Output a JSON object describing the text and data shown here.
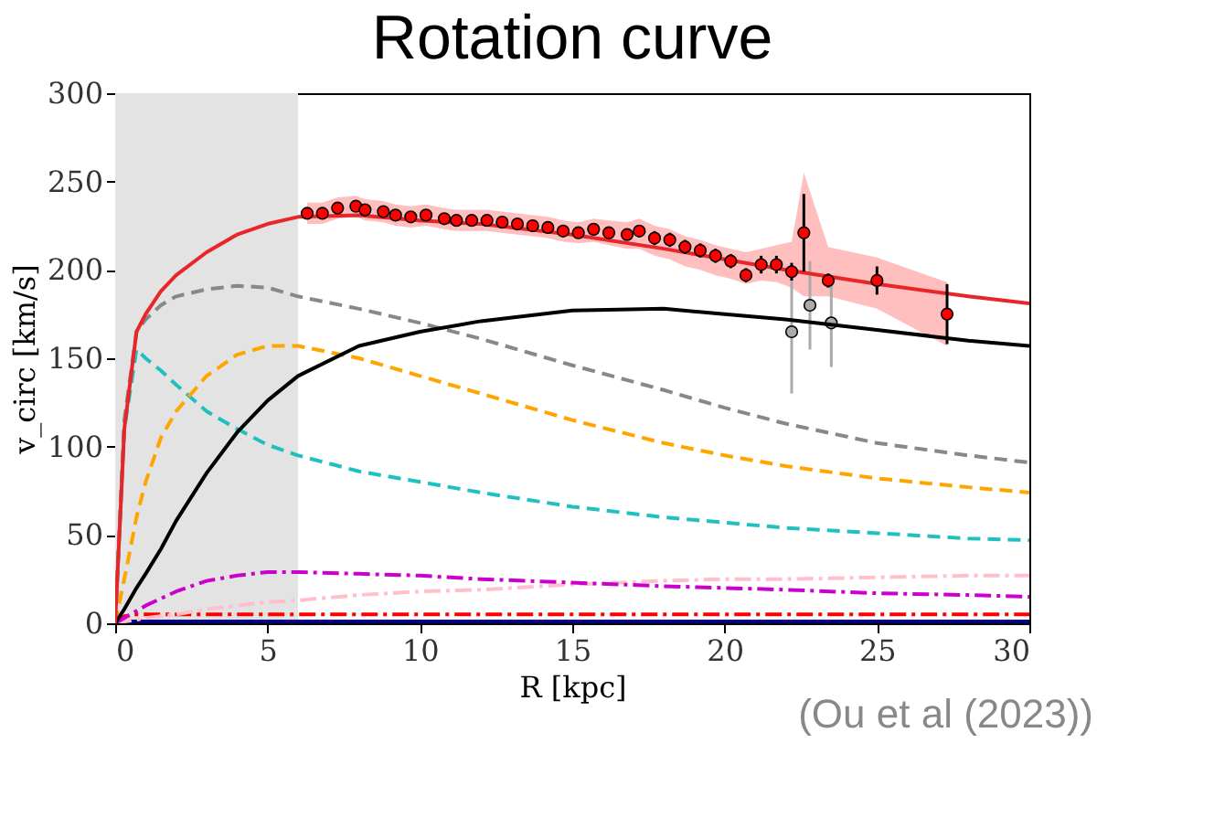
{
  "chart_data": {
    "type": "line",
    "title": "Rotation curve",
    "xlabel": "R [kpc]",
    "ylabel": "v_circ [km/s]",
    "annotations": [
      "(Ou et al (2023))"
    ],
    "xlim": [
      0,
      30
    ],
    "ylim": [
      0,
      300
    ],
    "xticks": [
      0,
      5,
      10,
      15,
      20,
      25,
      30
    ],
    "yticks": [
      0,
      50,
      100,
      150,
      200,
      250,
      300
    ],
    "grid": false,
    "marker": "none",
    "bands": [
      {
        "axis": "x",
        "from": 0,
        "to": 6,
        "color": "#e3e3e3"
      }
    ],
    "series": [
      {
        "color": "#aaaaaa",
        "type": "scatter",
        "marker": "circle",
        "x": [
          22.2,
          22.8,
          23.5
        ],
        "values": [
          165,
          180,
          170
        ],
        "errors": [
          35,
          25,
          25
        ]
      },
      {
        "color": "#000080",
        "line_style": "solid",
        "x": [
          0,
          30
        ],
        "values": [
          1,
          1
        ]
      },
      {
        "color": "#ff0000",
        "line_style": "dashdot",
        "x": [
          0,
          0.3,
          0.7,
          1,
          2,
          5,
          10,
          20,
          30
        ],
        "values": [
          0,
          4,
          5,
          5,
          5,
          5,
          5,
          5,
          5
        ]
      },
      {
        "color": "#ffc0cb",
        "line_style": "dashdot",
        "x": [
          0,
          0.3,
          0.7,
          1,
          1.5,
          2,
          3,
          4,
          5,
          6,
          8,
          10,
          12,
          15,
          18,
          20,
          22,
          25,
          28,
          30
        ],
        "values": [
          0,
          1,
          2,
          3,
          4,
          5,
          8,
          10,
          12,
          13,
          16,
          18,
          19,
          22,
          24,
          25,
          25,
          26,
          27,
          27
        ]
      },
      {
        "color": "#cc00cc",
        "line_style": "dashdot",
        "x": [
          0,
          0.3,
          0.7,
          1,
          1.5,
          2,
          3,
          4,
          5,
          6,
          8,
          10,
          12,
          15,
          18,
          20,
          22,
          25,
          28,
          30
        ],
        "values": [
          0,
          3,
          7,
          10,
          14,
          18,
          24,
          27,
          29,
          29,
          28,
          27,
          25,
          23,
          21,
          20,
          19,
          17,
          16,
          15
        ]
      },
      {
        "color": "#20c0c0",
        "line_style": "dashed",
        "x": [
          0,
          0.3,
          0.7,
          1,
          1.5,
          2,
          3,
          4,
          5,
          6,
          8,
          10,
          12,
          15,
          18,
          20,
          22,
          25,
          28,
          30
        ],
        "values": [
          0,
          110,
          155,
          150,
          143,
          135,
          120,
          110,
          101,
          95,
          86,
          80,
          74,
          66,
          60,
          57,
          54,
          51,
          48,
          47
        ]
      },
      {
        "color": "#ffa500",
        "line_style": "dashed",
        "x": [
          0,
          0.3,
          0.7,
          1,
          1.5,
          2,
          3,
          4,
          5,
          6,
          8,
          10,
          12,
          15,
          18,
          20,
          22,
          25,
          28,
          30
        ],
        "values": [
          0,
          25,
          60,
          80,
          105,
          120,
          140,
          152,
          157,
          157,
          150,
          140,
          130,
          115,
          102,
          95,
          89,
          82,
          77,
          74
        ]
      },
      {
        "color": "#888888",
        "line_style": "dashed",
        "x": [
          0,
          0.3,
          0.7,
          1,
          1.5,
          2,
          3,
          4,
          5,
          6,
          8,
          10,
          12,
          15,
          18,
          20,
          22,
          25,
          28,
          30
        ],
        "values": [
          0,
          115,
          165,
          172,
          180,
          185,
          189,
          191,
          190,
          185,
          178,
          170,
          161,
          146,
          132,
          122,
          113,
          102,
          95,
          91
        ]
      },
      {
        "color": "#000000",
        "line_style": "solid",
        "x": [
          0,
          0.3,
          0.7,
          1,
          1.5,
          2,
          3,
          4,
          5,
          6,
          8,
          10,
          12,
          15,
          18,
          20,
          22,
          25,
          28,
          30
        ],
        "values": [
          0,
          8,
          20,
          28,
          42,
          58,
          85,
          108,
          126,
          140,
          157,
          165,
          171,
          177,
          178,
          175,
          172,
          166,
          160,
          157
        ]
      },
      {
        "color": "#e8262a",
        "line_style": "solid",
        "x": [
          0,
          0.3,
          0.7,
          1,
          1.5,
          2,
          3,
          4,
          5,
          6,
          8,
          10,
          12,
          15,
          18,
          20,
          22,
          25,
          28,
          30
        ],
        "values": [
          0,
          110,
          165,
          175,
          188,
          197,
          210,
          220,
          226,
          230,
          231,
          228,
          226,
          220,
          212,
          206,
          200,
          192,
          185,
          181
        ]
      },
      {
        "color": "#ff0000",
        "type": "scatter",
        "marker": "circle",
        "x": [
          6.3,
          6.8,
          7.3,
          7.9,
          8.2,
          8.8,
          9.2,
          9.7,
          10.2,
          10.8,
          11.2,
          11.7,
          12.2,
          12.7,
          13.2,
          13.7,
          14.2,
          14.7,
          15.2,
          15.7,
          16.2,
          16.8,
          17.2,
          17.7,
          18.2,
          18.7,
          19.2,
          19.7,
          20.2,
          20.7,
          21.2,
          21.7,
          22.2,
          22.6,
          23.4,
          25.0,
          27.3
        ],
        "values": [
          232,
          232,
          235,
          236,
          234,
          233,
          231,
          230,
          231,
          229,
          228,
          228,
          228,
          227,
          226,
          225,
          224,
          222,
          221,
          223,
          221,
          220,
          222,
          218,
          217,
          213,
          211,
          208,
          205,
          197,
          203,
          203,
          199,
          221,
          194,
          194,
          175
        ],
        "errors": [
          3,
          3,
          3,
          3,
          3,
          3,
          3,
          3,
          3,
          3,
          3,
          3,
          3,
          3,
          3,
          3,
          3,
          3,
          3,
          3,
          3,
          3,
          3,
          4,
          4,
          4,
          4,
          4,
          4,
          4,
          5,
          5,
          5,
          22,
          4,
          8,
          17
        ],
        "lower": [
          226,
          226,
          229,
          230,
          228,
          227,
          225,
          224,
          225,
          223,
          222,
          222,
          222,
          221,
          220,
          219,
          218,
          216,
          215,
          216,
          214,
          212,
          212,
          208,
          206,
          202,
          200,
          197,
          195,
          192,
          194,
          193,
          190,
          185,
          185,
          178,
          157
        ],
        "upper": [
          238,
          238,
          241,
          242,
          240,
          239,
          237,
          236,
          237,
          235,
          234,
          234,
          234,
          233,
          232,
          231,
          230,
          228,
          227,
          229,
          228,
          227,
          229,
          225,
          223,
          219,
          217,
          214,
          212,
          210,
          212,
          214,
          216,
          255,
          213,
          207,
          193
        ]
      }
    ]
  }
}
